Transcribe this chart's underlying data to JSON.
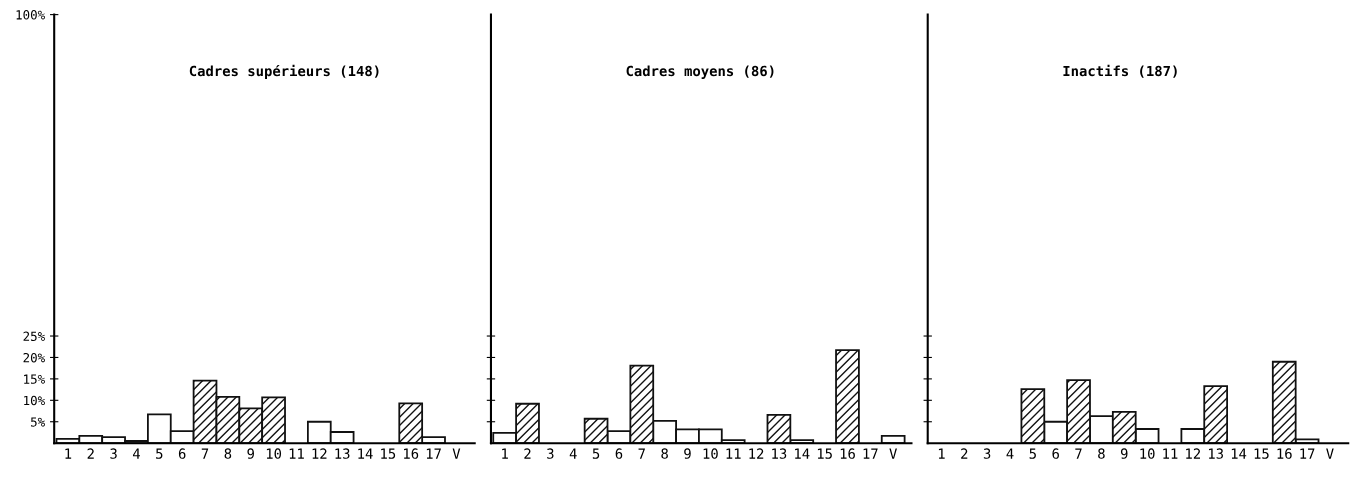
{
  "chart_data": [
    {
      "type": "bar",
      "title": "Cadres supérieurs (148)",
      "stacked": true,
      "categories": [
        "1",
        "2",
        "3",
        "4",
        "5",
        "6",
        "7",
        "8",
        "9",
        "10",
        "11",
        "12",
        "13",
        "14",
        "15",
        "16",
        "17",
        "V"
      ],
      "series": [
        {
          "color": "#111111",
          "values": [
            1,
            1.7,
            1.4,
            0.5,
            6.7,
            2.8,
            0,
            0,
            0,
            0,
            0,
            5,
            2.6,
            0,
            0,
            0,
            1.4,
            0
          ]
        },
        {
          "color": "#111111",
          "values": [
            0,
            0,
            0,
            0,
            0,
            0,
            14.6,
            10.8,
            8.1,
            10.7,
            0,
            0,
            0,
            0,
            0,
            9.3,
            0,
            0
          ]
        }
      ],
      "ylim": [
        0,
        100
      ],
      "yticks": [
        {
          "value": 5,
          "label": "5%"
        },
        {
          "value": 10,
          "label": "10%"
        },
        {
          "value": 15,
          "label": "15%"
        },
        {
          "value": 20,
          "label": "20%"
        },
        {
          "value": 25,
          "label": "25%"
        },
        {
          "value": 100,
          "label": "100%"
        }
      ]
    },
    {
      "type": "bar",
      "title": "Cadres moyens (86)",
      "stacked": true,
      "tick_labels": "x",
      "categories": [
        "1",
        "2",
        "3",
        "4",
        "5",
        "6",
        "7",
        "8",
        "9",
        "10",
        "11",
        "12",
        "13",
        "14",
        "15",
        "16",
        "17",
        "V"
      ],
      "series": [
        {
          "color": "#111111",
          "values": [
            2.4,
            0,
            0,
            0,
            0,
            2.8,
            0,
            5.2,
            3.2,
            3.2,
            0.7,
            0,
            0,
            0.7,
            0,
            0,
            0,
            1.7
          ]
        },
        {
          "color": "#111111",
          "values": [
            0,
            9.2,
            0,
            0,
            5.7,
            0,
            18.1,
            0,
            0,
            0,
            0,
            0,
            6.6,
            0,
            0,
            21.7,
            0,
            0
          ]
        }
      ],
      "ylim": [
        0,
        100
      ],
      "yticks": [
        {
          "value": 5,
          "label": null
        },
        {
          "value": 10,
          "label": null
        },
        {
          "value": 15,
          "label": null
        },
        {
          "value": 20,
          "label": null
        },
        {
          "value": 25,
          "label": null
        }
      ]
    },
    {
      "type": "bar",
      "title": "Inactifs (187)",
      "stacked": true,
      "tick_labels": "x",
      "categories": [
        "1",
        "2",
        "3",
        "4",
        "5",
        "6",
        "7",
        "8",
        "9",
        "10",
        "11",
        "12",
        "13",
        "14",
        "15",
        "16",
        "17",
        "V"
      ],
      "series": [
        {
          "color": "#111111",
          "values": [
            0,
            0,
            0,
            0,
            0,
            5,
            0,
            6.3,
            0,
            3.3,
            0,
            3.3,
            0,
            0,
            0,
            0,
            0.9,
            0
          ]
        },
        {
          "color": "#111111",
          "values": [
            0,
            0,
            0,
            0,
            12.6,
            0,
            14.7,
            0,
            7.3,
            0,
            0,
            0,
            13.3,
            0,
            0,
            19,
            0,
            0
          ]
        }
      ],
      "ylim": [
        0,
        100
      ],
      "yticks": [
        {
          "value": 5,
          "label": null
        },
        {
          "value": 10,
          "label": null
        },
        {
          "value": 15,
          "label": null
        },
        {
          "value": 20,
          "label": null
        },
        {
          "value": 25,
          "label": null
        }
      ]
    }
  ]
}
